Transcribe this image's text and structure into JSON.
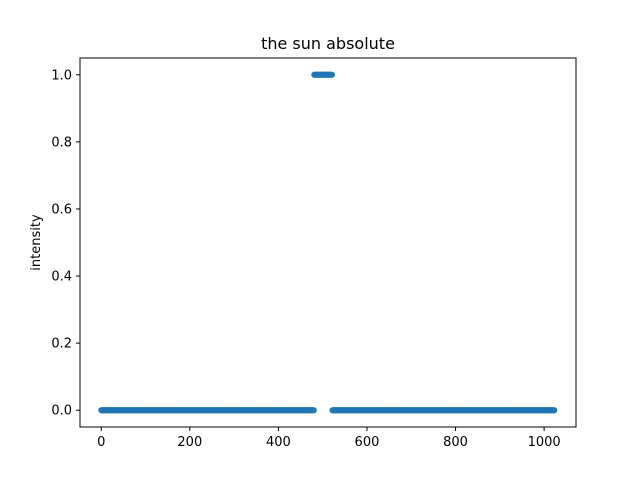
{
  "chart_data": {
    "type": "scatter",
    "title": "the sun  absolute",
    "xlabel": "",
    "ylabel": "intensity",
    "xlim": [
      -48,
      1072
    ],
    "ylim": [
      -0.05,
      1.05
    ],
    "xticks": [
      0,
      200,
      400,
      600,
      800,
      1000
    ],
    "xtick_labels": [
      "0",
      "200",
      "400",
      "600",
      "800",
      "1000"
    ],
    "yticks": [
      0.0,
      0.2,
      0.4,
      0.6,
      0.8,
      1.0
    ],
    "ytick_labels": [
      "0.0",
      "0.2",
      "0.4",
      "0.6",
      "0.8",
      "1.0"
    ],
    "grid": false,
    "legend": "none",
    "color": "#1f77b4",
    "segments": [
      {
        "x_start": 0,
        "x_end": 480,
        "y": 0.0
      },
      {
        "x_start": 481,
        "x_end": 521,
        "y": 1.0
      },
      {
        "x_start": 522,
        "x_end": 1023,
        "y": 0.0
      }
    ]
  }
}
